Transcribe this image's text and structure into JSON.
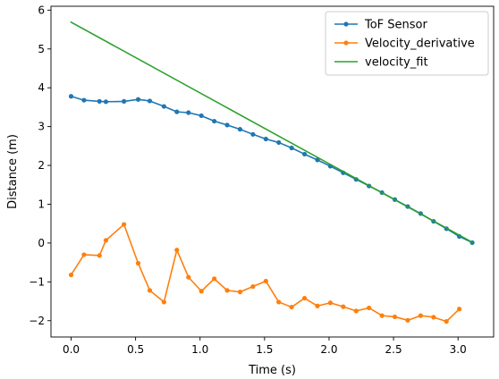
{
  "chart_data": {
    "type": "line",
    "title": "",
    "xlabel": "Time (s)",
    "ylabel": "Distance (m)",
    "xlim": [
      -0.156,
      3.276
    ],
    "ylim": [
      -2.42,
      6.1
    ],
    "x_ticks": [
      0.0,
      0.5,
      1.0,
      1.5,
      2.0,
      2.5,
      3.0
    ],
    "x_tick_labels": [
      "0.0",
      "0.5",
      "1.0",
      "1.5",
      "2.0",
      "2.5",
      "3.0"
    ],
    "y_ticks": [
      -2,
      -1,
      0,
      1,
      2,
      3,
      4,
      5,
      6
    ],
    "y_tick_labels": [
      "−2",
      "−1",
      "0",
      "1",
      "2",
      "3",
      "4",
      "5",
      "6"
    ],
    "grid": false,
    "legend_position": "top-right",
    "series": [
      {
        "name": "ToF Sensor",
        "color": "#1f77b4",
        "markers": true,
        "x": [
          0.0,
          0.1,
          0.22,
          0.27,
          0.41,
          0.52,
          0.61,
          0.72,
          0.82,
          0.91,
          1.01,
          1.11,
          1.21,
          1.31,
          1.41,
          1.51,
          1.61,
          1.71,
          1.81,
          1.91,
          2.01,
          2.11,
          2.21,
          2.31,
          2.41,
          2.51,
          2.61,
          2.71,
          2.81,
          2.91,
          3.01,
          3.11
        ],
        "y": [
          3.78,
          3.68,
          3.65,
          3.64,
          3.65,
          3.7,
          3.66,
          3.52,
          3.38,
          3.36,
          3.28,
          3.14,
          3.04,
          2.93,
          2.8,
          2.68,
          2.59,
          2.45,
          2.29,
          2.14,
          1.98,
          1.81,
          1.64,
          1.47,
          1.3,
          1.12,
          0.94,
          0.76,
          0.56,
          0.37,
          0.17,
          0.01
        ]
      },
      {
        "name": "Velocity_derivative",
        "color": "#ff7f0e",
        "markers": true,
        "x": [
          0.0,
          0.1,
          0.22,
          0.27,
          0.41,
          0.52,
          0.61,
          0.72,
          0.82,
          0.91,
          1.01,
          1.11,
          1.21,
          1.31,
          1.41,
          1.51,
          1.61,
          1.71,
          1.81,
          1.91,
          2.01,
          2.11,
          2.21,
          2.31,
          2.41,
          2.51,
          2.61,
          2.71,
          2.81,
          2.91,
          3.01
        ],
        "y": [
          -0.82,
          -0.3,
          -0.32,
          0.07,
          0.48,
          -0.52,
          -1.22,
          -1.52,
          -0.18,
          -0.88,
          -1.24,
          -0.92,
          -1.22,
          -1.26,
          -1.12,
          -0.98,
          -1.52,
          -1.65,
          -1.42,
          -1.62,
          -1.54,
          -1.64,
          -1.75,
          -1.67,
          -1.87,
          -1.9,
          -1.99,
          -1.87,
          -1.91,
          -2.02,
          -1.7
        ]
      },
      {
        "name": "velocity_fit",
        "color": "#2ca02c",
        "markers": false,
        "x": [
          0.0,
          3.11
        ],
        "y": [
          5.69,
          0.02
        ]
      }
    ]
  }
}
